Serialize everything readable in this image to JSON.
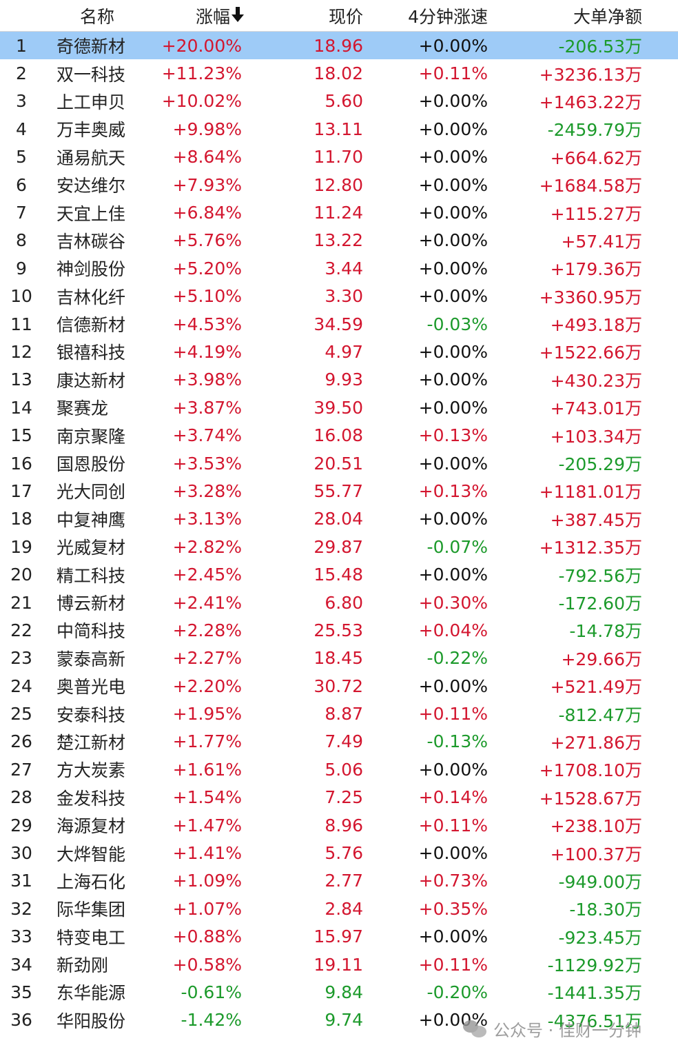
{
  "headers": {
    "name": "名称",
    "change": "涨幅",
    "price": "现价",
    "speed": "4分钟涨速",
    "net": "大单净额"
  },
  "selected_row": 0,
  "rows": [
    {
      "idx": "1",
      "name": "奇德新材",
      "change": "+20.00%",
      "price": "18.96",
      "speed": "+0.00%",
      "net": "-206.53万",
      "cc": "red",
      "pc": "red",
      "sc": "black",
      "nc": "green"
    },
    {
      "idx": "2",
      "name": "双一科技",
      "change": "+11.23%",
      "price": "18.02",
      "speed": "+0.11%",
      "net": "+3236.13万",
      "cc": "red",
      "pc": "red",
      "sc": "red",
      "nc": "red"
    },
    {
      "idx": "3",
      "name": "上工申贝",
      "change": "+10.02%",
      "price": "5.60",
      "speed": "+0.00%",
      "net": "+1463.22万",
      "cc": "red",
      "pc": "red",
      "sc": "black",
      "nc": "red"
    },
    {
      "idx": "4",
      "name": "万丰奥威",
      "change": "+9.98%",
      "price": "13.11",
      "speed": "+0.00%",
      "net": "-2459.79万",
      "cc": "red",
      "pc": "red",
      "sc": "black",
      "nc": "green"
    },
    {
      "idx": "5",
      "name": "通易航天",
      "change": "+8.64%",
      "price": "11.70",
      "speed": "+0.00%",
      "net": "+664.62万",
      "cc": "red",
      "pc": "red",
      "sc": "black",
      "nc": "red"
    },
    {
      "idx": "6",
      "name": "安达维尔",
      "change": "+7.93%",
      "price": "12.80",
      "speed": "+0.00%",
      "net": "+1684.58万",
      "cc": "red",
      "pc": "red",
      "sc": "black",
      "nc": "red"
    },
    {
      "idx": "7",
      "name": "天宜上佳",
      "change": "+6.84%",
      "price": "11.24",
      "speed": "+0.00%",
      "net": "+115.27万",
      "cc": "red",
      "pc": "red",
      "sc": "black",
      "nc": "red"
    },
    {
      "idx": "8",
      "name": "吉林碳谷",
      "change": "+5.76%",
      "price": "13.22",
      "speed": "+0.00%",
      "net": "+57.41万",
      "cc": "red",
      "pc": "red",
      "sc": "black",
      "nc": "red"
    },
    {
      "idx": "9",
      "name": "神剑股份",
      "change": "+5.20%",
      "price": "3.44",
      "speed": "+0.00%",
      "net": "+179.36万",
      "cc": "red",
      "pc": "red",
      "sc": "black",
      "nc": "red"
    },
    {
      "idx": "10",
      "name": "吉林化纤",
      "change": "+5.10%",
      "price": "3.30",
      "speed": "+0.00%",
      "net": "+3360.95万",
      "cc": "red",
      "pc": "red",
      "sc": "black",
      "nc": "red"
    },
    {
      "idx": "11",
      "name": "信德新材",
      "change": "+4.53%",
      "price": "34.59",
      "speed": "-0.03%",
      "net": "+493.18万",
      "cc": "red",
      "pc": "red",
      "sc": "green",
      "nc": "red"
    },
    {
      "idx": "12",
      "name": "银禧科技",
      "change": "+4.19%",
      "price": "4.97",
      "speed": "+0.00%",
      "net": "+1522.66万",
      "cc": "red",
      "pc": "red",
      "sc": "black",
      "nc": "red"
    },
    {
      "idx": "13",
      "name": "康达新材",
      "change": "+3.98%",
      "price": "9.93",
      "speed": "+0.00%",
      "net": "+430.23万",
      "cc": "red",
      "pc": "red",
      "sc": "black",
      "nc": "red"
    },
    {
      "idx": "14",
      "name": "聚赛龙",
      "change": "+3.87%",
      "price": "39.50",
      "speed": "+0.00%",
      "net": "+743.01万",
      "cc": "red",
      "pc": "red",
      "sc": "black",
      "nc": "red"
    },
    {
      "idx": "15",
      "name": "南京聚隆",
      "change": "+3.74%",
      "price": "16.08",
      "speed": "+0.13%",
      "net": "+103.34万",
      "cc": "red",
      "pc": "red",
      "sc": "red",
      "nc": "red"
    },
    {
      "idx": "16",
      "name": "国恩股份",
      "change": "+3.53%",
      "price": "20.51",
      "speed": "+0.00%",
      "net": "-205.29万",
      "cc": "red",
      "pc": "red",
      "sc": "black",
      "nc": "green"
    },
    {
      "idx": "17",
      "name": "光大同创",
      "change": "+3.28%",
      "price": "55.77",
      "speed": "+0.13%",
      "net": "+1181.01万",
      "cc": "red",
      "pc": "red",
      "sc": "red",
      "nc": "red"
    },
    {
      "idx": "18",
      "name": "中复神鹰",
      "change": "+3.13%",
      "price": "28.04",
      "speed": "+0.00%",
      "net": "+387.45万",
      "cc": "red",
      "pc": "red",
      "sc": "black",
      "nc": "red"
    },
    {
      "idx": "19",
      "name": "光威复材",
      "change": "+2.82%",
      "price": "29.87",
      "speed": "-0.07%",
      "net": "+1312.35万",
      "cc": "red",
      "pc": "red",
      "sc": "green",
      "nc": "red"
    },
    {
      "idx": "20",
      "name": "精工科技",
      "change": "+2.45%",
      "price": "15.48",
      "speed": "+0.00%",
      "net": "-792.56万",
      "cc": "red",
      "pc": "red",
      "sc": "black",
      "nc": "green"
    },
    {
      "idx": "21",
      "name": "博云新材",
      "change": "+2.41%",
      "price": "6.80",
      "speed": "+0.30%",
      "net": "-172.60万",
      "cc": "red",
      "pc": "red",
      "sc": "red",
      "nc": "green"
    },
    {
      "idx": "22",
      "name": "中简科技",
      "change": "+2.28%",
      "price": "25.53",
      "speed": "+0.04%",
      "net": "-14.78万",
      "cc": "red",
      "pc": "red",
      "sc": "red",
      "nc": "green"
    },
    {
      "idx": "23",
      "name": "蒙泰高新",
      "change": "+2.27%",
      "price": "18.45",
      "speed": "-0.22%",
      "net": "+29.66万",
      "cc": "red",
      "pc": "red",
      "sc": "green",
      "nc": "red"
    },
    {
      "idx": "24",
      "name": "奥普光电",
      "change": "+2.20%",
      "price": "30.72",
      "speed": "+0.00%",
      "net": "+521.49万",
      "cc": "red",
      "pc": "red",
      "sc": "black",
      "nc": "red"
    },
    {
      "idx": "25",
      "name": "安泰科技",
      "change": "+1.95%",
      "price": "8.87",
      "speed": "+0.11%",
      "net": "-812.47万",
      "cc": "red",
      "pc": "red",
      "sc": "red",
      "nc": "green"
    },
    {
      "idx": "26",
      "name": "楚江新材",
      "change": "+1.77%",
      "price": "7.49",
      "speed": "-0.13%",
      "net": "+271.86万",
      "cc": "red",
      "pc": "red",
      "sc": "green",
      "nc": "red"
    },
    {
      "idx": "27",
      "name": "方大炭素",
      "change": "+1.61%",
      "price": "5.06",
      "speed": "+0.00%",
      "net": "+1708.10万",
      "cc": "red",
      "pc": "red",
      "sc": "black",
      "nc": "red"
    },
    {
      "idx": "28",
      "name": "金发科技",
      "change": "+1.54%",
      "price": "7.25",
      "speed": "+0.14%",
      "net": "+1528.67万",
      "cc": "red",
      "pc": "red",
      "sc": "red",
      "nc": "red"
    },
    {
      "idx": "29",
      "name": "海源复材",
      "change": "+1.47%",
      "price": "8.96",
      "speed": "+0.11%",
      "net": "+238.10万",
      "cc": "red",
      "pc": "red",
      "sc": "red",
      "nc": "red"
    },
    {
      "idx": "30",
      "name": "大烨智能",
      "change": "+1.41%",
      "price": "5.76",
      "speed": "+0.00%",
      "net": "+100.37万",
      "cc": "red",
      "pc": "red",
      "sc": "black",
      "nc": "red"
    },
    {
      "idx": "31",
      "name": "上海石化",
      "change": "+1.09%",
      "price": "2.77",
      "speed": "+0.73%",
      "net": "-949.00万",
      "cc": "red",
      "pc": "red",
      "sc": "red",
      "nc": "green"
    },
    {
      "idx": "32",
      "name": "际华集团",
      "change": "+1.07%",
      "price": "2.84",
      "speed": "+0.35%",
      "net": "-18.30万",
      "cc": "red",
      "pc": "red",
      "sc": "red",
      "nc": "green"
    },
    {
      "idx": "33",
      "name": "特变电工",
      "change": "+0.88%",
      "price": "15.97",
      "speed": "+0.00%",
      "net": "-923.45万",
      "cc": "red",
      "pc": "red",
      "sc": "black",
      "nc": "green"
    },
    {
      "idx": "34",
      "name": "新劲刚",
      "change": "+0.58%",
      "price": "19.11",
      "speed": "+0.11%",
      "net": "-1129.92万",
      "cc": "red",
      "pc": "red",
      "sc": "red",
      "nc": "green"
    },
    {
      "idx": "35",
      "name": "东华能源",
      "change": "-0.61%",
      "price": "9.84",
      "speed": "-0.20%",
      "net": "-1441.35万",
      "cc": "green",
      "pc": "green",
      "sc": "green",
      "nc": "green"
    },
    {
      "idx": "36",
      "name": "华阳股份",
      "change": "-1.42%",
      "price": "9.74",
      "speed": "+0.00%",
      "net": "-4376.51万",
      "cc": "green",
      "pc": "green",
      "sc": "black",
      "nc": "green"
    }
  ],
  "watermark": {
    "icon": "wechat-icon",
    "text": "公众号 · 佳财一分钟"
  }
}
